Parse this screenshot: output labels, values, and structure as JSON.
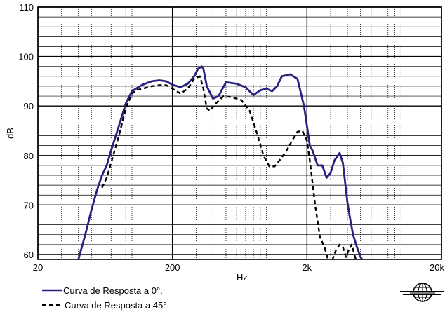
{
  "chart_data": {
    "type": "line",
    "title": "",
    "xlabel": "Hz",
    "ylabel": "dB",
    "xscale": "log",
    "xlim": [
      20,
      20000
    ],
    "ylim": [
      59,
      110
    ],
    "x_ticks": [
      {
        "value": 20,
        "label": "20"
      },
      {
        "value": 200,
        "label": "200"
      },
      {
        "value": 2000,
        "label": "2k"
      },
      {
        "value": 20000,
        "label": "20k"
      }
    ],
    "y_ticks": [
      {
        "value": 60,
        "label": "60"
      },
      {
        "value": 70,
        "label": "70"
      },
      {
        "value": 80,
        "label": "80"
      },
      {
        "value": 90,
        "label": "90"
      },
      {
        "value": 100,
        "label": "100"
      },
      {
        "value": 110,
        "label": "110"
      }
    ],
    "grid": true,
    "legend_position": "bottom-left",
    "colors": {
      "series0": "#29217f",
      "series1": "#000000",
      "grid": "#000000"
    },
    "series": [
      {
        "name": "Curva de Resposta a 0°.",
        "style": "solid",
        "x": [
          40,
          45,
          50,
          55,
          60,
          65,
          70,
          80,
          90,
          100,
          110,
          120,
          140,
          160,
          180,
          200,
          230,
          260,
          290,
          310,
          330,
          340,
          360,
          400,
          440,
          500,
          600,
          700,
          800,
          900,
          1000,
          1100,
          1200,
          1300,
          1500,
          1700,
          1900,
          2000,
          2100,
          2200,
          2400,
          2600,
          2800,
          3000,
          3200,
          3500,
          3700,
          4000,
          4200,
          4400,
          4700,
          5000,
          5300,
          5600,
          6000,
          6500,
          7000
        ],
        "values": [
          59,
          64,
          69,
          73,
          76,
          78,
          81,
          86,
          90.5,
          93,
          93.7,
          94.3,
          95,
          95.2,
          95,
          94.3,
          93.8,
          94.5,
          96,
          97.5,
          98,
          97.5,
          94,
          91.5,
          92,
          94.8,
          94.5,
          93.8,
          92.2,
          93.2,
          93.5,
          93,
          94,
          96,
          96.4,
          95.5,
          90,
          86,
          82,
          81,
          78,
          78,
          75.5,
          76.5,
          79,
          80.5,
          78.5,
          70.5,
          67,
          64,
          61.5,
          59.5,
          58.5,
          58.2,
          58,
          58,
          58
        ]
      },
      {
        "name": "Curva de Resposta a 45°.",
        "style": "dashed",
        "x": [
          60,
          65,
          70,
          80,
          90,
          100,
          110,
          120,
          140,
          160,
          180,
          200,
          230,
          260,
          290,
          320,
          340,
          360,
          380,
          420,
          480,
          550,
          650,
          750,
          850,
          950,
          1050,
          1150,
          1250,
          1400,
          1550,
          1700,
          1850,
          2000,
          2100,
          2300,
          2500,
          2700,
          2900,
          3000,
          3100,
          3300,
          3500,
          3700,
          3900,
          4100,
          4300,
          4500,
          4700
        ],
        "values": [
          73.5,
          75.5,
          78.5,
          84,
          89.5,
          92.5,
          93.3,
          93.5,
          94,
          94.2,
          94.2,
          93.5,
          92.5,
          93.5,
          95.5,
          96,
          93.5,
          89.5,
          89,
          90.5,
          92,
          91.8,
          91.2,
          89,
          84.5,
          80,
          77.8,
          77.8,
          79,
          80.8,
          83,
          84.8,
          85,
          83,
          79,
          70,
          63.5,
          61.5,
          58.5,
          58.2,
          59,
          61,
          62,
          61.5,
          59.5,
          61,
          62,
          60,
          58.3
        ]
      }
    ]
  },
  "logo": {
    "name": "globe-logo-icon"
  }
}
